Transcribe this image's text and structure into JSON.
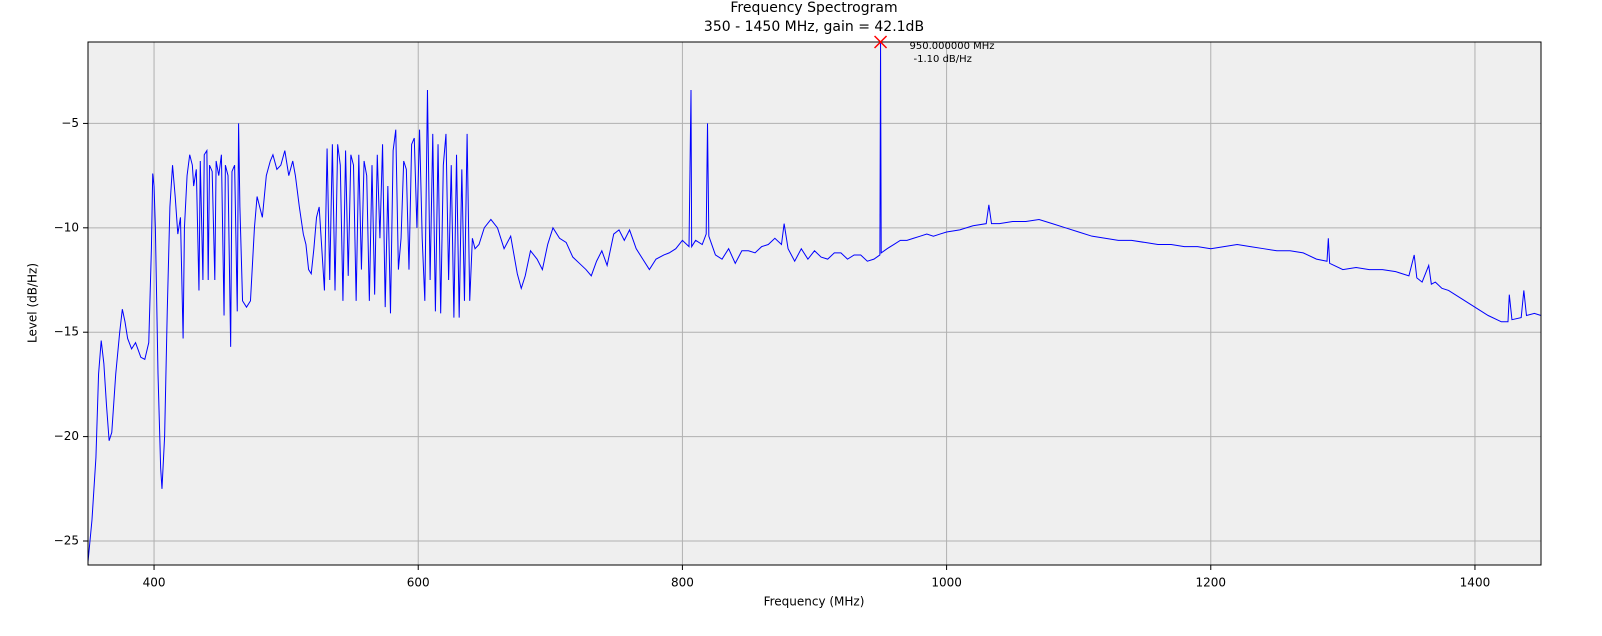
{
  "chart_data": {
    "type": "line",
    "title": "Frequency Spectrogram",
    "subtitle": "350 - 1450 MHz, gain = 42.1dB",
    "x_label": "Frequency (MHz)",
    "y_label": "Level (dB/Hz)",
    "color": "#0000ff",
    "grid": true,
    "xlim": [
      350,
      1450
    ],
    "ylim": [
      -26.15,
      -1.1
    ],
    "xticks": [
      400,
      600,
      800,
      1000,
      1200,
      1400
    ],
    "yticks": [
      {
        "value": -25,
        "label": "−25"
      },
      {
        "value": -20,
        "label": "−20"
      },
      {
        "value": -15,
        "label": "−15"
      },
      {
        "value": -10,
        "label": "−10"
      },
      {
        "value": -5,
        "label": "−5"
      }
    ],
    "annotation": {
      "x": 950,
      "y": -1.1,
      "color": "#ff0000",
      "labels": [
        "950.000000 MHz",
        "-1.10 dB/Hz"
      ]
    },
    "x": [
      350,
      353,
      356,
      358,
      360,
      362,
      364,
      366,
      368,
      371,
      374,
      376,
      378,
      380,
      383,
      386,
      390,
      393,
      396,
      398,
      399,
      400,
      401,
      403,
      405,
      406,
      408,
      410,
      412,
      414,
      416,
      418,
      420,
      422,
      423,
      425,
      427,
      429,
      430,
      432,
      434,
      435,
      437,
      438,
      440,
      441,
      442,
      444,
      446,
      447,
      449,
      451,
      453,
      454,
      456,
      458,
      459,
      461,
      463,
      464,
      465,
      467,
      470,
      473,
      476,
      478,
      480,
      482,
      485,
      488,
      490,
      493,
      496,
      499,
      502,
      505,
      507,
      510,
      513,
      515,
      517,
      519,
      521,
      523,
      525,
      527,
      529,
      531,
      533,
      535,
      537,
      539,
      541,
      543,
      545,
      547,
      549,
      551,
      553,
      555,
      557,
      559,
      561,
      563,
      565,
      567,
      569,
      571,
      573,
      575,
      577,
      579,
      581,
      583,
      585,
      587,
      589,
      591,
      593,
      595,
      597,
      599,
      601,
      603,
      605,
      607,
      609,
      611,
      613,
      615,
      617,
      619,
      621,
      623,
      625,
      627,
      629,
      631,
      633,
      635,
      637,
      639,
      641,
      643,
      646,
      650,
      655,
      660,
      665,
      670,
      675,
      678,
      681,
      685,
      690,
      694,
      698,
      702,
      707,
      712,
      717,
      722,
      727,
      731,
      735,
      739,
      743,
      748,
      752,
      756,
      760,
      765,
      770,
      775,
      780,
      786,
      790,
      795,
      800,
      805,
      806.5,
      807,
      810,
      815,
      818,
      819,
      820,
      825,
      830,
      835,
      840,
      845,
      850,
      855,
      860,
      865,
      870,
      875,
      877,
      880,
      885,
      890,
      895,
      900,
      905,
      910,
      915,
      920,
      925,
      930,
      935,
      940,
      945,
      949.5,
      950,
      950.5,
      955,
      960,
      965,
      970,
      975,
      980,
      985,
      990,
      995,
      1000,
      1010,
      1020,
      1030,
      1032,
      1034,
      1040,
      1050,
      1060,
      1070,
      1080,
      1090,
      1100,
      1110,
      1120,
      1130,
      1140,
      1150,
      1160,
      1170,
      1180,
      1190,
      1200,
      1210,
      1220,
      1230,
      1240,
      1250,
      1260,
      1270,
      1280,
      1288,
      1289,
      1290,
      1300,
      1310,
      1320,
      1330,
      1340,
      1350,
      1354,
      1356,
      1360,
      1365,
      1367,
      1370,
      1375,
      1380,
      1390,
      1400,
      1410,
      1420,
      1425,
      1426,
      1428,
      1435,
      1437,
      1439,
      1445,
      1450
    ],
    "values": [
      -26,
      -24,
      -21,
      -17,
      -15.4,
      -16.5,
      -18.5,
      -20.2,
      -19.8,
      -17,
      -15,
      -13.9,
      -14.5,
      -15.3,
      -15.8,
      -15.5,
      -16.2,
      -16.3,
      -15.5,
      -11,
      -7.4,
      -8,
      -10,
      -17,
      -21.5,
      -22.5,
      -20,
      -14,
      -9,
      -7,
      -8.5,
      -10.3,
      -9.5,
      -15.3,
      -10,
      -7.5,
      -6.5,
      -7,
      -8,
      -7.2,
      -13,
      -6.8,
      -12.5,
      -6.5,
      -6.3,
      -12.5,
      -7,
      -7.3,
      -12.5,
      -6.8,
      -7.5,
      -6.5,
      -14.2,
      -7,
      -7.5,
      -15.7,
      -7.3,
      -7,
      -14,
      -5,
      -9,
      -13.5,
      -13.8,
      -13.5,
      -10,
      -8.5,
      -9,
      -9.5,
      -7.5,
      -6.8,
      -6.5,
      -7.2,
      -7,
      -6.3,
      -7.5,
      -6.8,
      -7.5,
      -9,
      -10.3,
      -10.8,
      -12,
      -12.2,
      -11,
      -9.5,
      -9,
      -11,
      -13,
      -6.2,
      -12.5,
      -6,
      -13,
      -6,
      -7,
      -13.5,
      -6.3,
      -12.3,
      -6.5,
      -7,
      -13.5,
      -6.5,
      -12,
      -6.8,
      -7.5,
      -13.5,
      -7,
      -13.2,
      -6.5,
      -10.5,
      -6,
      -13.8,
      -8,
      -14.1,
      -6.3,
      -5.3,
      -12,
      -10.5,
      -6.8,
      -7.2,
      -12,
      -6,
      -5.7,
      -10,
      -5.3,
      -10.5,
      -13.5,
      -3.4,
      -12.5,
      -5.5,
      -14,
      -6,
      -14.1,
      -7,
      -5.5,
      -12.5,
      -7,
      -14.3,
      -6.5,
      -14.3,
      -7.2,
      -13.5,
      -5.5,
      -13.5,
      -10.5,
      -11,
      -10.8,
      -10,
      -9.6,
      -10,
      -11,
      -10.4,
      -12.2,
      -12.9,
      -12.3,
      -11.1,
      -11.5,
      -12,
      -10.8,
      -10,
      -10.5,
      -10.7,
      -11.4,
      -11.7,
      -12,
      -12.3,
      -11.6,
      -11.1,
      -11.8,
      -10.3,
      -10.1,
      -10.6,
      -10.1,
      -11,
      -11.5,
      -12,
      -11.5,
      -11.3,
      -11.2,
      -11,
      -10.6,
      -10.9,
      -3.4,
      -10.9,
      -10.6,
      -10.8,
      -10.3,
      -5,
      -10.4,
      -11.3,
      -11.5,
      -11,
      -11.7,
      -11.1,
      -11.1,
      -11.2,
      -10.9,
      -10.8,
      -10.5,
      -10.8,
      -9.8,
      -11,
      -11.6,
      -11,
      -11.5,
      -11.1,
      -11.4,
      -11.5,
      -11.2,
      -11.2,
      -11.5,
      -11.3,
      -11.3,
      -11.6,
      -11.5,
      -11.3,
      -1.1,
      -11.2,
      -11,
      -10.8,
      -10.6,
      -10.6,
      -10.5,
      -10.4,
      -10.3,
      -10.4,
      -10.3,
      -10.2,
      -10.1,
      -9.9,
      -9.8,
      -8.9,
      -9.8,
      -9.8,
      -9.7,
      -9.7,
      -9.6,
      -9.8,
      -10,
      -10.2,
      -10.4,
      -10.5,
      -10.6,
      -10.6,
      -10.7,
      -10.8,
      -10.8,
      -10.9,
      -10.9,
      -11,
      -10.9,
      -10.8,
      -10.9,
      -11,
      -11.1,
      -11.1,
      -11.2,
      -11.5,
      -11.6,
      -10.5,
      -11.7,
      -12,
      -11.9,
      -12,
      -12,
      -12.1,
      -12.3,
      -11.3,
      -12.4,
      -12.6,
      -11.8,
      -12.7,
      -12.6,
      -12.9,
      -13,
      -13.4,
      -13.8,
      -14.2,
      -14.5,
      -14.5,
      -13.2,
      -14.4,
      -14.3,
      -13,
      -14.2,
      -14.1,
      -14.2
    ]
  }
}
